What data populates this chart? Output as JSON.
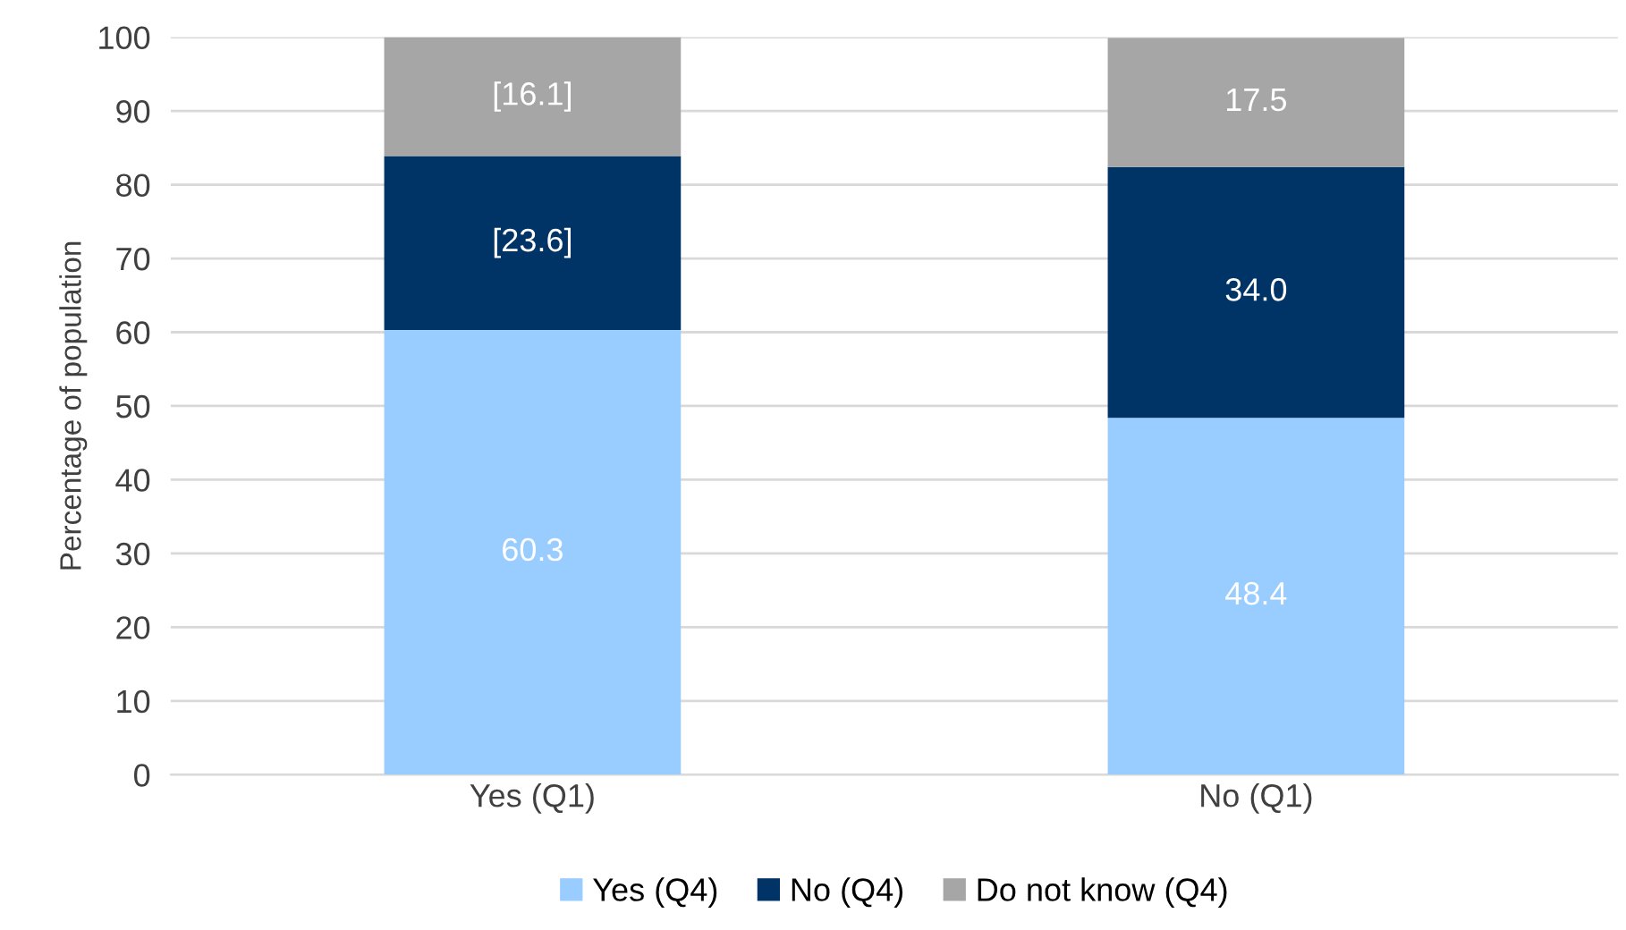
{
  "chart_data": {
    "type": "bar",
    "stacked": true,
    "ylabel": "Percentage of population",
    "categories": [
      "Yes (Q1)",
      "No (Q1)"
    ],
    "series": [
      {
        "name": "Yes (Q4)",
        "color": "#99ccff",
        "values": [
          60.3,
          48.4
        ],
        "value_labels": [
          "60.3",
          "48.4"
        ]
      },
      {
        "name": "No (Q4)",
        "color": "#003366",
        "values": [
          23.6,
          34.0
        ],
        "value_labels": [
          "[23.6]",
          "34.0"
        ]
      },
      {
        "name": "Do not know (Q4)",
        "color": "#a6a6a6",
        "values": [
          16.1,
          17.5
        ],
        "value_labels": [
          "[16.1]",
          "17.5"
        ]
      }
    ],
    "ylim": [
      0,
      100
    ],
    "yticks": [
      0,
      10,
      20,
      30,
      40,
      50,
      60,
      70,
      80,
      90,
      100
    ],
    "grid": "y",
    "legend": "bottom"
  }
}
